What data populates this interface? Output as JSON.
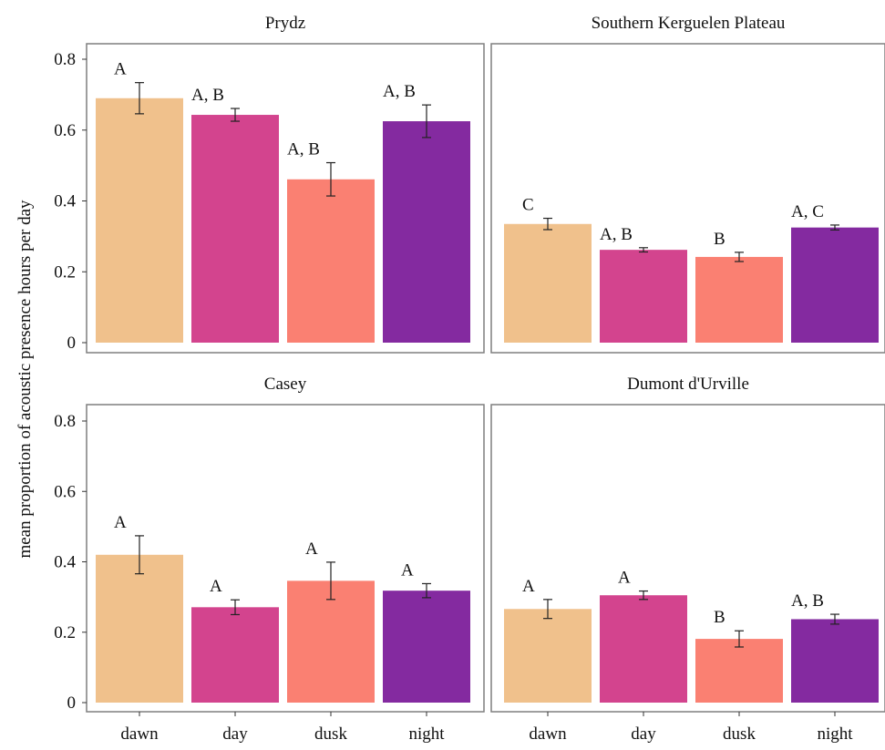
{
  "chart_data": {
    "type": "bar",
    "ylabel": "mean proportion of acoustic presence hours per day",
    "categories": [
      "dawn",
      "day",
      "dusk",
      "night"
    ],
    "ylim": [
      0,
      0.85
    ],
    "yticks": [
      0,
      0.2,
      0.4,
      0.6,
      0.8
    ],
    "ytick_labels": [
      "0",
      "0.2",
      "0.4",
      "0.6",
      "0.8"
    ],
    "grid": false,
    "colors": {
      "dawn": "#F0C18C",
      "day": "#D3448E",
      "dusk": "#FA8072",
      "night": "#842AA0"
    },
    "panels": [
      {
        "title": "Prydz",
        "values": [
          0.69,
          0.643,
          0.461,
          0.625
        ],
        "errors": [
          0.044,
          0.018,
          0.047,
          0.046
        ],
        "letters": [
          "A",
          "A, B",
          "A, B",
          "A, B"
        ]
      },
      {
        "title": "Southern Kerguelen Plateau",
        "values": [
          0.335,
          0.262,
          0.242,
          0.325
        ],
        "errors": [
          0.016,
          0.006,
          0.013,
          0.007
        ],
        "letters": [
          "C",
          "A, B",
          "B",
          "A, C"
        ]
      },
      {
        "title": "Casey",
        "values": [
          0.42,
          0.271,
          0.346,
          0.318
        ],
        "errors": [
          0.054,
          0.021,
          0.053,
          0.02
        ],
        "letters": [
          "A",
          "A",
          "A",
          "A"
        ]
      },
      {
        "title": "Dumont d'Urville",
        "values": [
          0.266,
          0.305,
          0.181,
          0.237
        ],
        "errors": [
          0.027,
          0.012,
          0.023,
          0.014
        ],
        "letters": [
          "A",
          "A",
          "B",
          "A, B"
        ]
      }
    ]
  }
}
